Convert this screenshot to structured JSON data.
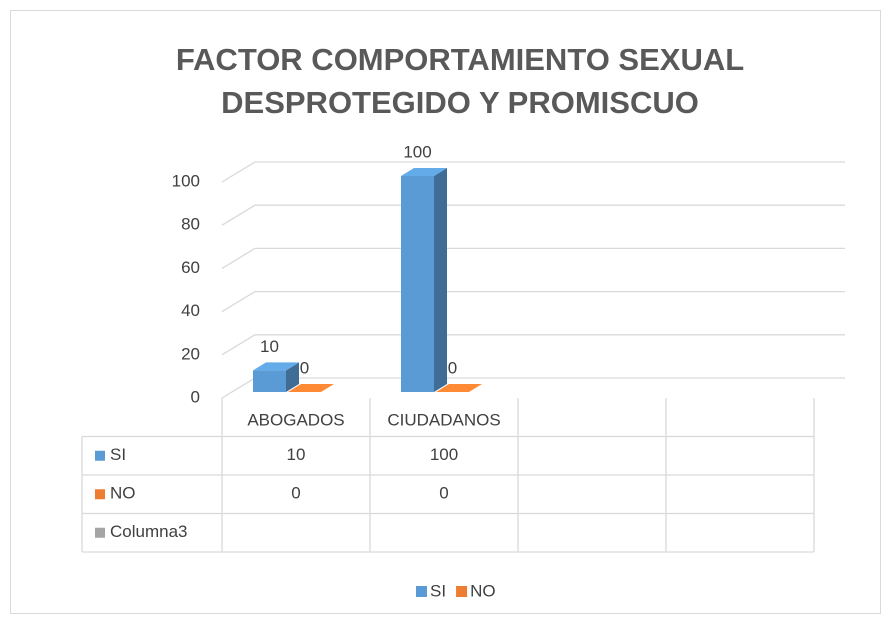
{
  "chart_data": {
    "type": "bar3d",
    "title": "FACTOR COMPORTAMIENTO SEXUAL DESPROTEGIDO Y PROMISCUO",
    "categories": [
      "ABOGADOS",
      "CIUDADANOS",
      null,
      null
    ],
    "series": [
      {
        "name": "SI",
        "color": "#5b9bd5",
        "values": [
          10,
          100,
          null,
          null
        ]
      },
      {
        "name": "NO",
        "color": "#ed7d31",
        "values": [
          0,
          0,
          null,
          null
        ]
      },
      {
        "name": "Columna3",
        "color": "#a5a5a5",
        "values": [
          null,
          null,
          null,
          null
        ],
        "legend": false
      }
    ],
    "ylim": [
      0,
      100
    ],
    "yticks": [
      0,
      20,
      40,
      60,
      80,
      100
    ],
    "grid": true,
    "data_labels": true,
    "data_table": true,
    "legend_position": "bottom"
  }
}
